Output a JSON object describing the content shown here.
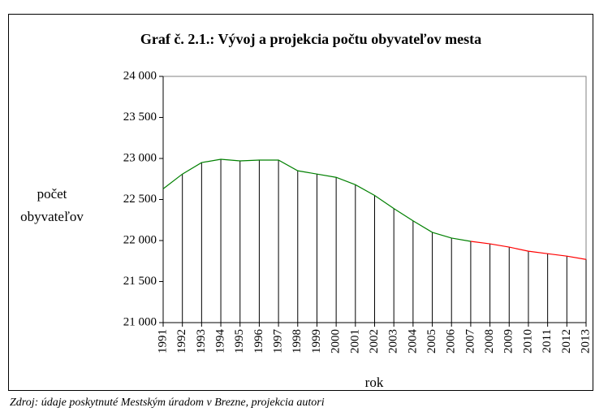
{
  "chart_data": {
    "type": "line",
    "title": "Graf č. 2.1.: Vývoj a projekcia počtu obyvateľov mesta",
    "y_label": [
      "počet",
      "obyvateľov"
    ],
    "x_label": "rok",
    "source": "Zdroj: údaje poskytnuté Mestským úradom v Brezne, projekcia autori",
    "categories": [
      "1991",
      "1992",
      "1993",
      "1994",
      "1995",
      "1996",
      "1997",
      "1998",
      "1999",
      "2000",
      "2001",
      "2002",
      "2003",
      "2004",
      "2005",
      "2006",
      "2007",
      "2008",
      "2009",
      "2010",
      "2011",
      "2012",
      "2013"
    ],
    "series": [
      {
        "color": "#008000",
        "values": [
          22630,
          22810,
          22950,
          22990,
          22970,
          22980,
          22980,
          22850,
          22810,
          22770,
          22680,
          22550,
          22390,
          22240,
          22100,
          22030,
          21990,
          null,
          null,
          null,
          null,
          null,
          null
        ]
      },
      {
        "color": "#ff0000",
        "values": [
          null,
          null,
          null,
          null,
          null,
          null,
          null,
          null,
          null,
          null,
          null,
          null,
          null,
          null,
          null,
          null,
          21990,
          21960,
          21920,
          21870,
          21840,
          21810,
          21770
        ]
      }
    ],
    "ylim": [
      21000,
      24000
    ],
    "yticks": [
      {
        "value": 21000,
        "label": "21 000"
      },
      {
        "value": 21500,
        "label": "21 500"
      },
      {
        "value": 22000,
        "label": "22 000"
      },
      {
        "value": 22500,
        "label": "22 500"
      },
      {
        "value": 23000,
        "label": "23 000"
      },
      {
        "value": 23500,
        "label": "23 500"
      },
      {
        "value": 24000,
        "label": "24 000"
      }
    ],
    "drop_lines": true
  }
}
